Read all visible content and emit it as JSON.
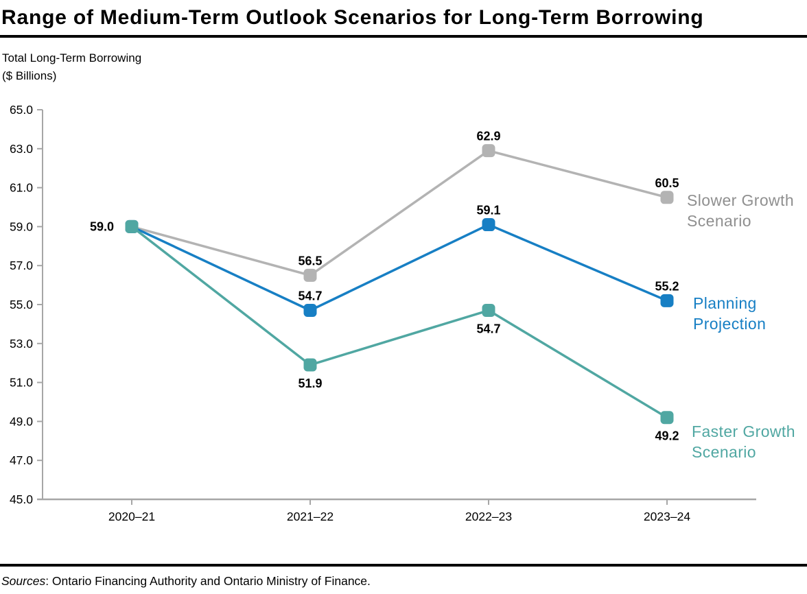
{
  "header": {
    "title": "Range of Medium-Term Outlook Scenarios for Long-Term Borrowing",
    "y_unit_line1": "Total Long-Term Borrowing",
    "y_unit_line2": "($ Billions)"
  },
  "footer": {
    "sources_label": "Sources",
    "sources_rest": ": Ontario Financing Authority and Ontario Ministry of Finance."
  },
  "chart_data": {
    "type": "line",
    "title": "Range of Medium-Term Outlook Scenarios for Long-Term Borrowing",
    "ylabel": "Total Long-Term Borrowing ($ Billions)",
    "categories": [
      "2020–21",
      "2021–22",
      "2022–23",
      "2023–24"
    ],
    "series": [
      {
        "name": "Slower Growth Scenario",
        "color": "#B3B3B3",
        "label_color": "#8F8F8F",
        "values": [
          59.0,
          56.5,
          62.9,
          60.5
        ],
        "label_positions": [
          "none",
          "above",
          "above",
          "above"
        ]
      },
      {
        "name": "Planning Projection",
        "color": "#177FC4",
        "label_color": "#177FC4",
        "values": [
          59.0,
          54.7,
          59.1,
          55.2
        ],
        "label_positions": [
          "none",
          "above",
          "above",
          "above"
        ]
      },
      {
        "name": "Faster Growth Scenario",
        "color": "#50A7A2",
        "label_color": "#50A7A2",
        "values": [
          59.0,
          51.9,
          54.7,
          49.2
        ],
        "label_positions": [
          "left",
          "below",
          "below",
          "below"
        ]
      }
    ],
    "ylim": [
      45.0,
      65.0
    ],
    "ytick_step": 2.0,
    "value_format": "one-decimal",
    "grid": "off",
    "legend_position": "right-of-last-point",
    "axis_color": "#A6A6A6"
  }
}
